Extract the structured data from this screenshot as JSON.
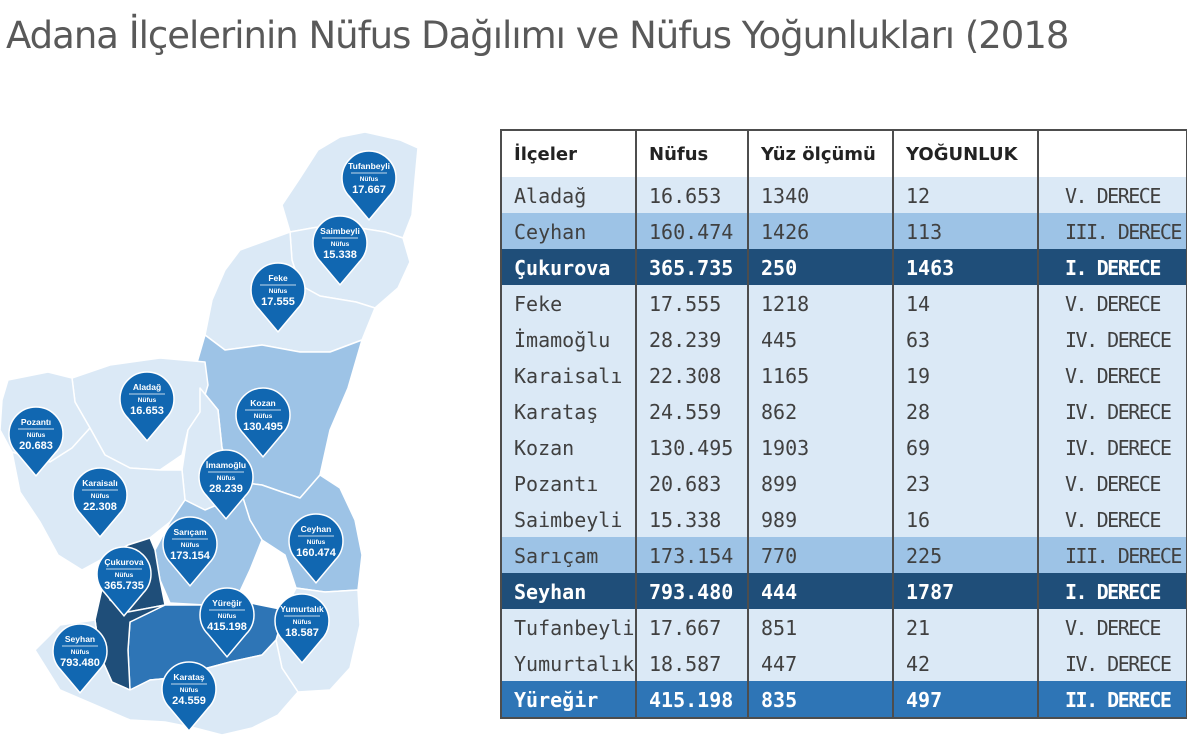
{
  "title": "Adana İlçelerinin Nüfus Dağılımı ve Nüfus Yoğunlukları (2018",
  "colors": {
    "pin": "#1167b1",
    "level_I": "#1f4e79",
    "level_II": "#2e75b6",
    "level_III": "#9dc3e6",
    "level_IV_V": "#dbe9f6",
    "text": "#404040"
  },
  "map": {
    "population_label": "Nüfus",
    "pins": [
      {
        "name": "Tufanbeyli",
        "value": "17.667"
      },
      {
        "name": "Saimbeyli",
        "value": "15.338"
      },
      {
        "name": "Feke",
        "value": "17.555"
      },
      {
        "name": "Aladağ",
        "value": "16.653"
      },
      {
        "name": "Pozantı",
        "value": "20.683"
      },
      {
        "name": "Kozan",
        "value": "130.495"
      },
      {
        "name": "İmamoğlu",
        "value": "28.239"
      },
      {
        "name": "Karaisalı",
        "value": "22.308"
      },
      {
        "name": "Ceyhan",
        "value": "160.474"
      },
      {
        "name": "Sarıçam",
        "value": "173.154"
      },
      {
        "name": "Çukurova",
        "value": "365.735"
      },
      {
        "name": "Yüreğir",
        "value": "415.198"
      },
      {
        "name": "Yumurtalık",
        "value": "18.587"
      },
      {
        "name": "Seyhan",
        "value": "793.480"
      },
      {
        "name": "Karataş",
        "value": "24.559"
      }
    ]
  },
  "table": {
    "headers": [
      "İlçeler",
      "Nüfus",
      "Yüz ölçümü",
      "YOĞUNLUK",
      ""
    ],
    "rows": [
      {
        "cells": [
          "Aladağ",
          "16.653",
          "1340",
          "12",
          "V. DERECE"
        ],
        "style": "c0"
      },
      {
        "cells": [
          "Ceyhan",
          "160.474",
          "1426",
          "113",
          "III. DERECE"
        ],
        "style": "c1"
      },
      {
        "cells": [
          "Çukurova",
          "365.735",
          "250",
          "1463",
          "I. DERECE"
        ],
        "style": "c2"
      },
      {
        "cells": [
          "Feke",
          "17.555",
          "1218",
          "14",
          "V. DERECE"
        ],
        "style": "c0"
      },
      {
        "cells": [
          "İmamoğlu",
          "28.239",
          "445",
          "63",
          "IV. DERECE"
        ],
        "style": "c0"
      },
      {
        "cells": [
          "Karaisalı",
          "22.308",
          "1165",
          "19",
          "V. DERECE"
        ],
        "style": "c0"
      },
      {
        "cells": [
          "Karataş",
          "24.559",
          "862",
          "28",
          "IV. DERECE"
        ],
        "style": "c0"
      },
      {
        "cells": [
          "Kozan",
          "130.495",
          "1903",
          "69",
          "IV. DERECE"
        ],
        "style": "c0"
      },
      {
        "cells": [
          "Pozantı",
          "20.683",
          "899",
          "23",
          "V. DERECE"
        ],
        "style": "c0"
      },
      {
        "cells": [
          "Saimbeyli",
          "15.338",
          "989",
          "16",
          "V. DERECE"
        ],
        "style": "c0"
      },
      {
        "cells": [
          "Sarıçam",
          "173.154",
          "770",
          "225",
          "III. DERECE"
        ],
        "style": "c1"
      },
      {
        "cells": [
          "Seyhan",
          "793.480",
          "444",
          "1787",
          "I. DERECE"
        ],
        "style": "c2"
      },
      {
        "cells": [
          "Tufanbeyli",
          "17.667",
          "851",
          "21",
          "V. DERECE"
        ],
        "style": "c0"
      },
      {
        "cells": [
          "Yumurtalık",
          "18.587",
          "447",
          "42",
          "IV. DERECE"
        ],
        "style": "c0"
      },
      {
        "cells": [
          "Yüreğir",
          "415.198",
          "835",
          "497",
          "II. DERECE"
        ],
        "style": "c3"
      }
    ]
  }
}
